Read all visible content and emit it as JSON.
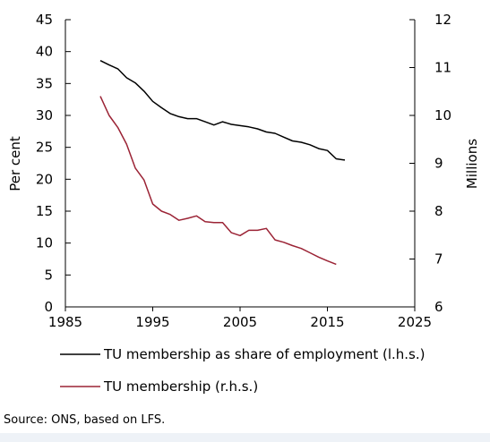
{
  "chart_data": {
    "type": "line",
    "x": {
      "ticks": [
        1985,
        1995,
        2005,
        2015,
        2025
      ],
      "lim": [
        1985,
        2025
      ]
    },
    "y_left": {
      "label": "Per cent",
      "ticks": [
        0,
        5,
        10,
        15,
        20,
        25,
        30,
        35,
        40,
        45
      ],
      "lim": [
        0,
        45
      ]
    },
    "y_right": {
      "label": "Millions",
      "ticks": [
        6,
        7,
        8,
        9,
        10,
        11,
        12
      ],
      "lim": [
        6,
        12
      ]
    },
    "grid": false,
    "legend_position": "bottom",
    "series": [
      {
        "name": "TU membership as share of employment (l.h.s.)",
        "axis": "left",
        "color": "#000000",
        "x": [
          1989,
          1990,
          1991,
          1992,
          1993,
          1994,
          1995,
          1996,
          1997,
          1998,
          1999,
          2000,
          2001,
          2002,
          2003,
          2004,
          2005,
          2006,
          2007,
          2008,
          2009,
          2010,
          2011,
          2012,
          2013,
          2014,
          2015,
          2016,
          2017
        ],
        "values": [
          38.6,
          37.9,
          37.3,
          35.9,
          35.1,
          33.8,
          32.2,
          31.2,
          30.3,
          29.8,
          29.5,
          29.5,
          29.0,
          28.5,
          29.0,
          28.6,
          28.4,
          28.2,
          27.9,
          27.4,
          27.2,
          26.6,
          26.0,
          25.8,
          25.4,
          24.8,
          24.5,
          23.2,
          23.0
        ]
      },
      {
        "name": "TU membership (r.h.s.)",
        "axis": "right",
        "color": "#9b2335",
        "x": [
          1989,
          1990,
          1991,
          1992,
          1993,
          1994,
          1995,
          1996,
          1997,
          1998,
          1999,
          2000,
          2001,
          2002,
          2003,
          2004,
          2005,
          2006,
          2007,
          2008,
          2009,
          2010,
          2011,
          2012,
          2013,
          2014,
          2015,
          2016
        ],
        "values": [
          10.4,
          10.0,
          9.75,
          9.4,
          8.9,
          8.65,
          8.15,
          8.0,
          7.93,
          7.81,
          7.85,
          7.9,
          7.78,
          7.76,
          7.76,
          7.55,
          7.49,
          7.6,
          7.6,
          7.64,
          7.4,
          7.35,
          7.28,
          7.22,
          7.13,
          7.04,
          6.96,
          6.89
        ]
      }
    ]
  },
  "source_note": "Source: ONS, based on LFS."
}
